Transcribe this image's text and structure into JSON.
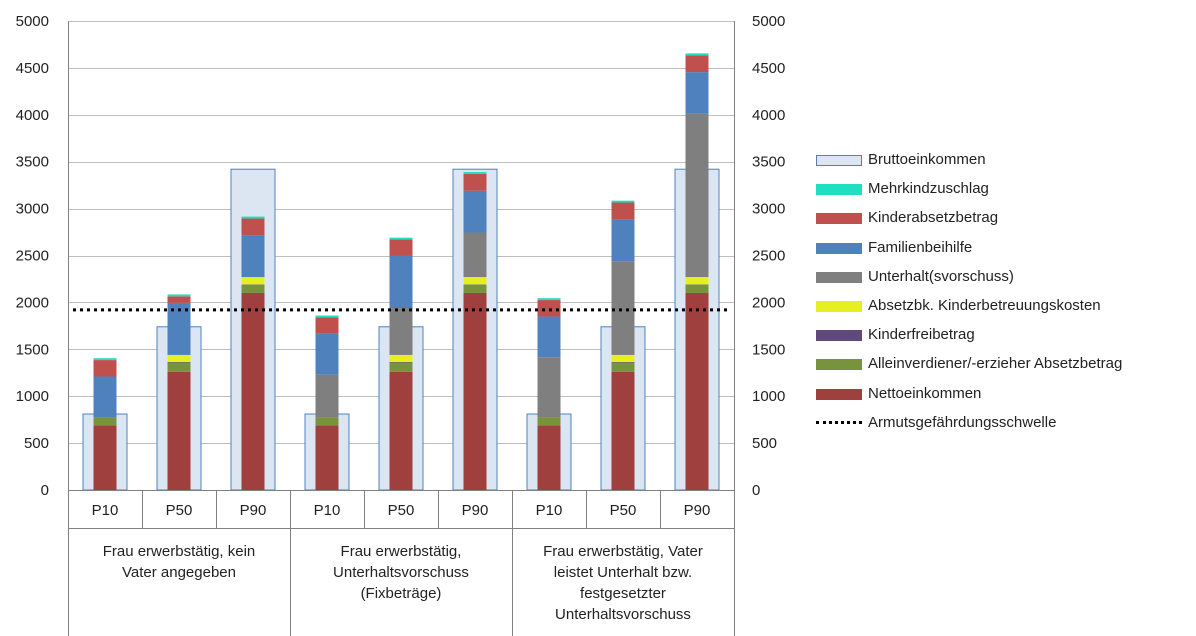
{
  "chart_data": {
    "type": "bar",
    "stacked": true,
    "ylim": [
      0,
      5000
    ],
    "yticks": [
      0,
      500,
      1000,
      1500,
      2000,
      2500,
      3000,
      3500,
      4000,
      4500,
      5000
    ],
    "ytick_labels": [
      "0",
      "500",
      "1000",
      "1500",
      "2000",
      "2500",
      "3000",
      "3500",
      "4000",
      "4500",
      "5000"
    ],
    "grid": true,
    "legend_position": "right",
    "groups": [
      {
        "label": "Frau erwerbstätig, kein Vater angegeben",
        "lines": [
          "Frau erwerbstätig, kein",
          "Vater angegeben"
        ]
      },
      {
        "label": "Frau erwerbstätig, Unterhaltsvorschuss (Fixbeträge)",
        "lines": [
          "Frau erwerbstätig,",
          "Unterhaltsvorschuss",
          "(Fixbeträge)"
        ]
      },
      {
        "label": "Frau erwerbstätig, Vater leistet Unterhalt bzw. festgesetzter Unterhaltsvorschuss",
        "lines": [
          "Frau erwerbstätig, Vater",
          "leistet Unterhalt bzw.",
          "festgesetzter",
          "Unterhaltsvorschuss"
        ]
      }
    ],
    "categories": [
      "P10",
      "P50",
      "P90",
      "P10",
      "P50",
      "P90",
      "P10",
      "P50",
      "P90"
    ],
    "background_series": {
      "name": "Bruttoeinkommen",
      "color": "#dce6f2",
      "border": "#4f81bd",
      "values": [
        810,
        1740,
        3420,
        810,
        1740,
        3420,
        810,
        1740,
        3420
      ]
    },
    "series": [
      {
        "name": "Nettoeinkommen",
        "color": "#a0403e",
        "values": [
          690,
          1260,
          2100,
          690,
          1260,
          2100,
          690,
          1260,
          2100
        ]
      },
      {
        "name": "Alleinverdiener/-erzieher Absetzbetrag",
        "color": "#77933c",
        "values": [
          80,
          100,
          85,
          80,
          100,
          85,
          80,
          100,
          85
        ]
      },
      {
        "name": "Kinderfreibetrag",
        "color": "#604a7b",
        "values": [
          5,
          5,
          5,
          5,
          5,
          5,
          5,
          5,
          5
        ]
      },
      {
        "name": "Absetzbk. Kinderbetreuungskosten",
        "color": "#e6f020",
        "values": [
          0,
          75,
          80,
          0,
          75,
          80,
          0,
          75,
          80
        ]
      },
      {
        "name": "Unterhalt(svorschuss)",
        "color": "#7f7f7f",
        "values": [
          0,
          0,
          0,
          455,
          500,
          475,
          640,
          1000,
          1740
        ]
      },
      {
        "name": "Familienbeihilfe",
        "color": "#4f81bd",
        "values": [
          435,
          555,
          445,
          435,
          555,
          445,
          435,
          445,
          445
        ]
      },
      {
        "name": "Kinderabsetzbetrag",
        "color": "#c0504d",
        "values": [
          175,
          70,
          180,
          175,
          175,
          180,
          175,
          180,
          180
        ]
      },
      {
        "name": "Mehrkindzuschlag",
        "color": "#1ee0c0",
        "values": [
          20,
          20,
          20,
          20,
          20,
          20,
          20,
          20,
          20
        ]
      }
    ],
    "threshold": {
      "name": "Armutsgefährdungsschwelle",
      "value": 1920,
      "color": "#000000"
    },
    "legend_order": [
      "Bruttoeinkommen",
      "Mehrkindzuschlag",
      "Kinderabsetzbetrag",
      "Familienbeihilfe",
      "Unterhalt(svorschuss)",
      "Absetzbk. Kinderbetreuungskosten",
      "Kinderfreibetrag",
      "Alleinverdiener/-erzieher Absetzbetrag",
      "Nettoeinkommen",
      "Armutsgefährdungsschwelle"
    ]
  }
}
